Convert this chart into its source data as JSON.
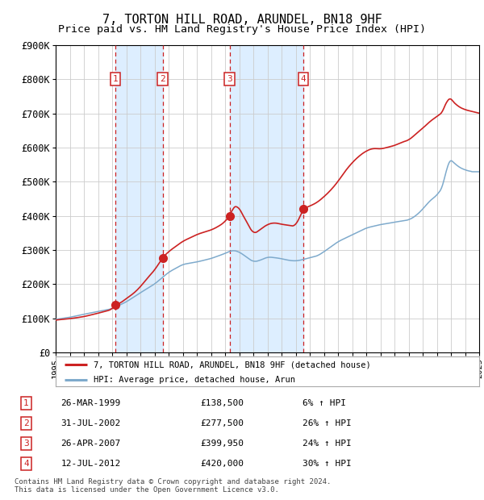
{
  "title": "7, TORTON HILL ROAD, ARUNDEL, BN18 9HF",
  "subtitle": "Price paid vs. HM Land Registry's House Price Index (HPI)",
  "xlim": [
    1995,
    2025
  ],
  "ylim": [
    0,
    900000
  ],
  "yticks": [
    0,
    100000,
    200000,
    300000,
    400000,
    500000,
    600000,
    700000,
    800000,
    900000
  ],
  "ytick_labels": [
    "£0",
    "£100K",
    "£200K",
    "£300K",
    "£400K",
    "£500K",
    "£600K",
    "£700K",
    "£800K",
    "£900K"
  ],
  "hpi_color": "#7eaacc",
  "price_color": "#cc2222",
  "bg_color": "#ffffff",
  "grid_color": "#cccccc",
  "shade_color": "#ddeeff",
  "transactions": [
    {
      "num": 1,
      "date": "26-MAR-1999",
      "year": 1999.23,
      "price": 138500,
      "pct": "6%",
      "dir": "↑"
    },
    {
      "num": 2,
      "date": "31-JUL-2002",
      "year": 2002.58,
      "price": 277500,
      "pct": "26%",
      "dir": "↑"
    },
    {
      "num": 3,
      "date": "26-APR-2007",
      "year": 2007.32,
      "price": 399950,
      "pct": "24%",
      "dir": "↑"
    },
    {
      "num": 4,
      "date": "12-JUL-2012",
      "year": 2012.53,
      "price": 420000,
      "pct": "30%",
      "dir": "↑"
    }
  ],
  "legend_label_price": "7, TORTON HILL ROAD, ARUNDEL, BN18 9HF (detached house)",
  "legend_label_hpi": "HPI: Average price, detached house, Arun",
  "footer": "Contains HM Land Registry data © Crown copyright and database right 2024.\nThis data is licensed under the Open Government Licence v3.0.",
  "title_fontsize": 11,
  "subtitle_fontsize": 9.5,
  "hpi_waypoints": [
    [
      1995.0,
      97000
    ],
    [
      1996.0,
      103000
    ],
    [
      1997.0,
      112000
    ],
    [
      1998.0,
      120000
    ],
    [
      1999.0,
      128000
    ],
    [
      2000.0,
      148000
    ],
    [
      2001.0,
      175000
    ],
    [
      2002.0,
      200000
    ],
    [
      2003.0,
      235000
    ],
    [
      2004.0,
      258000
    ],
    [
      2005.0,
      265000
    ],
    [
      2006.0,
      275000
    ],
    [
      2007.0,
      290000
    ],
    [
      2007.5,
      300000
    ],
    [
      2008.0,
      295000
    ],
    [
      2008.5,
      280000
    ],
    [
      2009.0,
      265000
    ],
    [
      2009.5,
      270000
    ],
    [
      2010.0,
      280000
    ],
    [
      2010.5,
      278000
    ],
    [
      2011.0,
      275000
    ],
    [
      2011.5,
      270000
    ],
    [
      2012.0,
      268000
    ],
    [
      2012.5,
      272000
    ],
    [
      2013.0,
      278000
    ],
    [
      2013.5,
      282000
    ],
    [
      2014.0,
      295000
    ],
    [
      2014.5,
      310000
    ],
    [
      2015.0,
      325000
    ],
    [
      2015.5,
      335000
    ],
    [
      2016.0,
      345000
    ],
    [
      2016.5,
      355000
    ],
    [
      2017.0,
      365000
    ],
    [
      2017.5,
      370000
    ],
    [
      2018.0,
      375000
    ],
    [
      2018.5,
      378000
    ],
    [
      2019.0,
      382000
    ],
    [
      2019.5,
      385000
    ],
    [
      2020.0,
      388000
    ],
    [
      2020.5,
      400000
    ],
    [
      2021.0,
      420000
    ],
    [
      2021.5,
      445000
    ],
    [
      2022.0,
      460000
    ],
    [
      2022.5,
      490000
    ],
    [
      2022.8,
      570000
    ],
    [
      2023.0,
      565000
    ],
    [
      2023.5,
      545000
    ],
    [
      2024.0,
      535000
    ],
    [
      2024.5,
      530000
    ],
    [
      2025.0,
      530000
    ]
  ],
  "price_waypoints": [
    [
      1995.0,
      95000
    ],
    [
      1996.0,
      99000
    ],
    [
      1997.0,
      105000
    ],
    [
      1998.0,
      115000
    ],
    [
      1999.0,
      126000
    ],
    [
      1999.23,
      138500
    ],
    [
      1999.5,
      142000
    ],
    [
      2000.0,
      158000
    ],
    [
      2000.5,
      172000
    ],
    [
      2001.0,
      192000
    ],
    [
      2001.5,
      218000
    ],
    [
      2002.0,
      240000
    ],
    [
      2002.58,
      277500
    ],
    [
      2003.0,
      295000
    ],
    [
      2003.5,
      310000
    ],
    [
      2004.0,
      325000
    ],
    [
      2004.5,
      335000
    ],
    [
      2005.0,
      345000
    ],
    [
      2005.5,
      352000
    ],
    [
      2006.0,
      358000
    ],
    [
      2006.5,
      368000
    ],
    [
      2007.0,
      382000
    ],
    [
      2007.32,
      399950
    ],
    [
      2007.5,
      420000
    ],
    [
      2007.9,
      435000
    ],
    [
      2008.0,
      420000
    ],
    [
      2008.5,
      385000
    ],
    [
      2009.0,
      345000
    ],
    [
      2009.5,
      360000
    ],
    [
      2010.0,
      375000
    ],
    [
      2010.5,
      380000
    ],
    [
      2011.0,
      375000
    ],
    [
      2011.5,
      372000
    ],
    [
      2012.0,
      368000
    ],
    [
      2012.53,
      420000
    ],
    [
      2013.0,
      428000
    ],
    [
      2013.5,
      438000
    ],
    [
      2014.0,
      455000
    ],
    [
      2014.5,
      475000
    ],
    [
      2015.0,
      500000
    ],
    [
      2015.5,
      530000
    ],
    [
      2016.0,
      555000
    ],
    [
      2016.5,
      575000
    ],
    [
      2017.0,
      590000
    ],
    [
      2017.5,
      598000
    ],
    [
      2018.0,
      595000
    ],
    [
      2018.5,
      600000
    ],
    [
      2019.0,
      605000
    ],
    [
      2019.5,
      615000
    ],
    [
      2020.0,
      620000
    ],
    [
      2020.5,
      638000
    ],
    [
      2021.0,
      655000
    ],
    [
      2021.5,
      675000
    ],
    [
      2022.0,
      690000
    ],
    [
      2022.5,
      705000
    ],
    [
      2022.8,
      755000
    ],
    [
      2023.0,
      740000
    ],
    [
      2023.5,
      720000
    ],
    [
      2024.0,
      710000
    ],
    [
      2024.5,
      705000
    ],
    [
      2025.0,
      700000
    ]
  ]
}
